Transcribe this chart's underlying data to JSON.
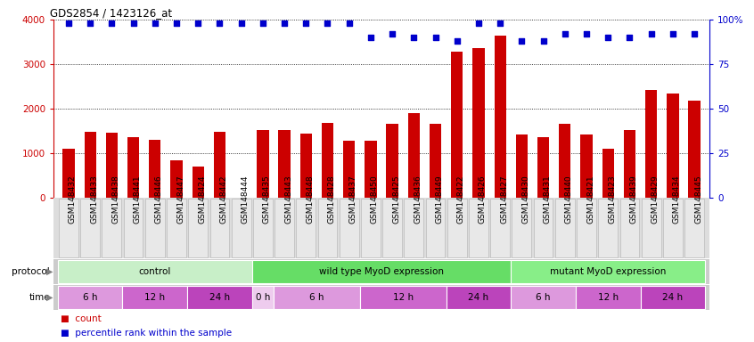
{
  "title": "GDS2854 / 1423126_at",
  "samples": [
    "GSM148432",
    "GSM148433",
    "GSM148438",
    "GSM148441",
    "GSM148446",
    "GSM148447",
    "GSM148424",
    "GSM148442",
    "GSM148444",
    "GSM148435",
    "GSM148443",
    "GSM148448",
    "GSM148428",
    "GSM148437",
    "GSM148450",
    "GSM148425",
    "GSM148436",
    "GSM148449",
    "GSM148422",
    "GSM148426",
    "GSM148427",
    "GSM148430",
    "GSM148431",
    "GSM148440",
    "GSM148421",
    "GSM148423",
    "GSM148439",
    "GSM148429",
    "GSM148434",
    "GSM148445"
  ],
  "bar_values": [
    1100,
    1480,
    1460,
    1370,
    1310,
    850,
    700,
    1490,
    0,
    1530,
    1520,
    1450,
    1680,
    1290,
    1290,
    1670,
    1900,
    1660,
    3280,
    3360,
    3640,
    1420,
    1370,
    1660,
    1430,
    1100,
    1520,
    2430,
    2350,
    2190
  ],
  "percentile_values": [
    98,
    98,
    98,
    98,
    98,
    98,
    98,
    98,
    98,
    98,
    98,
    98,
    98,
    98,
    90,
    92,
    90,
    90,
    88,
    98,
    98,
    88,
    88,
    92,
    92,
    90,
    90,
    92,
    92,
    92
  ],
  "bar_color": "#cc0000",
  "percentile_color": "#0000cc",
  "left_ylim": [
    0,
    4000
  ],
  "right_ylim": [
    0,
    100
  ],
  "left_yticks": [
    0,
    1000,
    2000,
    3000,
    4000
  ],
  "right_yticks": [
    0,
    25,
    50,
    75,
    100
  ],
  "right_yticklabels": [
    "0",
    "25",
    "50",
    "75",
    "100%"
  ],
  "grid_values": [
    1000,
    2000,
    3000,
    4000
  ],
  "protocol_groups": [
    {
      "label": "control",
      "start": 0,
      "end": 8,
      "color": "#c8efc8"
    },
    {
      "label": "wild type MyoD expression",
      "start": 9,
      "end": 20,
      "color": "#66dd66"
    },
    {
      "label": "mutant MyoD expression",
      "start": 21,
      "end": 29,
      "color": "#88ee88"
    }
  ],
  "time_groups": [
    {
      "label": "6 h",
      "start": 0,
      "end": 2,
      "color": "#dd99dd"
    },
    {
      "label": "12 h",
      "start": 3,
      "end": 5,
      "color": "#cc66cc"
    },
    {
      "label": "24 h",
      "start": 6,
      "end": 8,
      "color": "#bb44bb"
    },
    {
      "label": "0 h",
      "start": 9,
      "end": 9,
      "color": "#eeccee"
    },
    {
      "label": "6 h",
      "start": 10,
      "end": 13,
      "color": "#dd99dd"
    },
    {
      "label": "12 h",
      "start": 14,
      "end": 17,
      "color": "#cc66cc"
    },
    {
      "label": "24 h",
      "start": 18,
      "end": 20,
      "color": "#bb44bb"
    },
    {
      "label": "6 h",
      "start": 21,
      "end": 23,
      "color": "#dd99dd"
    },
    {
      "label": "12 h",
      "start": 24,
      "end": 26,
      "color": "#cc66cc"
    },
    {
      "label": "24 h",
      "start": 27,
      "end": 29,
      "color": "#bb44bb"
    }
  ],
  "bg_color": "#ffffff",
  "tick_label_fontsize": 6.5,
  "bar_width": 0.55,
  "label_bg_color": "#dddddd",
  "label_border_color": "#999999"
}
